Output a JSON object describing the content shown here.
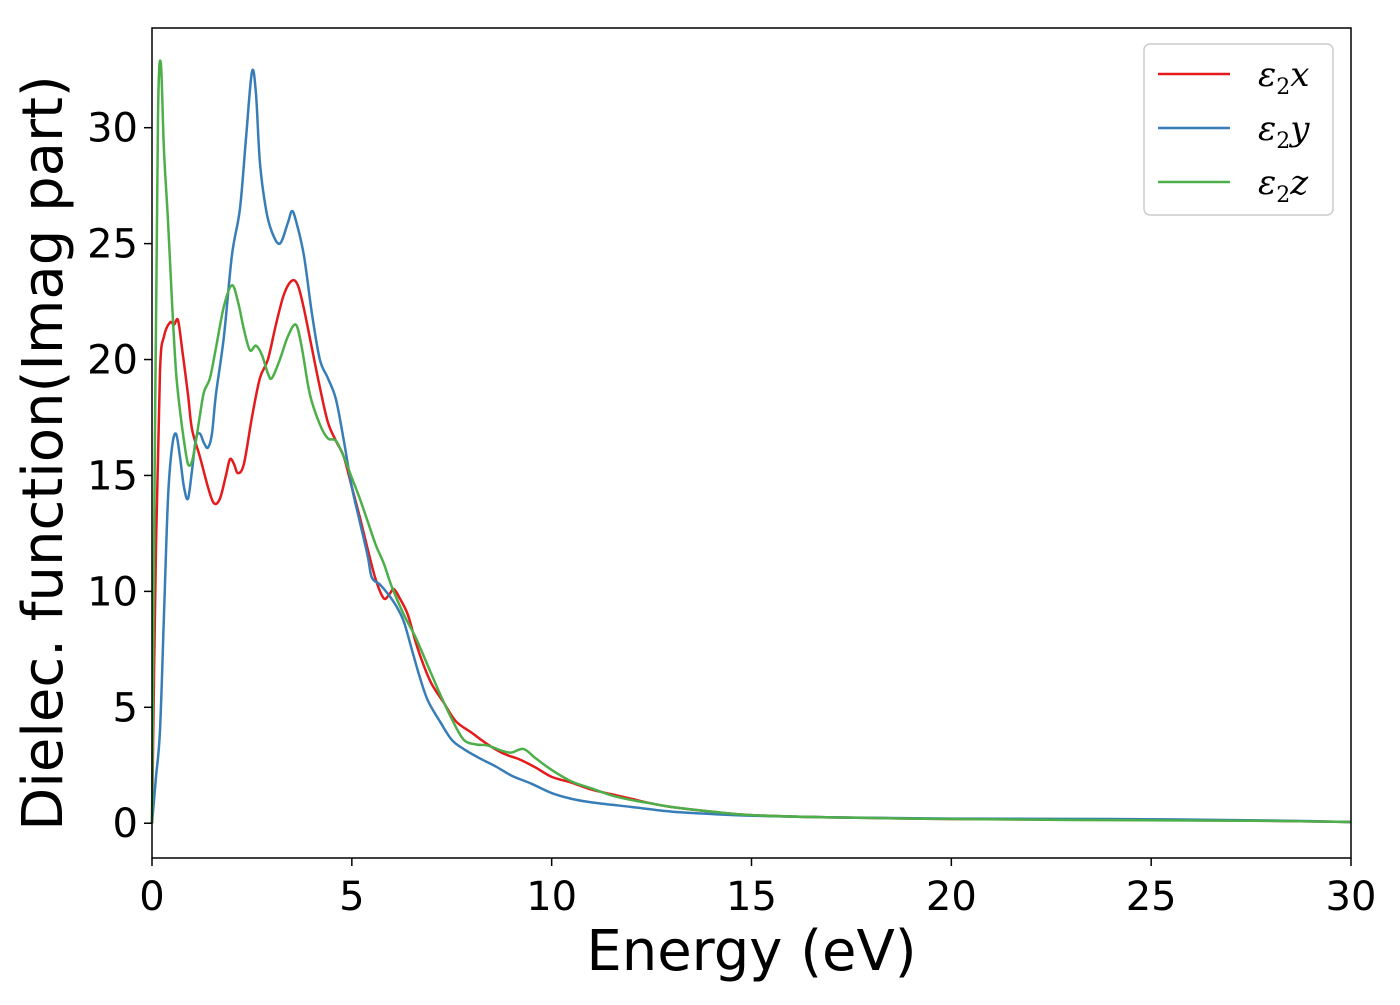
{
  "chart_data": {
    "type": "line",
    "xlabel": "Energy (eV)",
    "ylabel": "Dielec. function(Imag part)",
    "xlim": [
      0,
      30
    ],
    "ylim": [
      -1.5,
      34.3
    ],
    "xticks": [
      0,
      5,
      10,
      15,
      20,
      25,
      30
    ],
    "yticks": [
      0,
      5,
      10,
      15,
      20,
      25,
      30
    ],
    "grid": false,
    "legend_position": "top-right",
    "series": [
      {
        "name": "ε₂x",
        "label_main": "ε",
        "label_sub": "2",
        "label_suffix": "x",
        "color": "#e41a1c",
        "points": [
          [
            0,
            0
          ],
          [
            0.1,
            12
          ],
          [
            0.2,
            19.5
          ],
          [
            0.3,
            21
          ],
          [
            0.45,
            21.6
          ],
          [
            0.55,
            21.5
          ],
          [
            0.65,
            21.7
          ],
          [
            0.75,
            20.5
          ],
          [
            0.9,
            18.5
          ],
          [
            1.0,
            17
          ],
          [
            1.2,
            15.8
          ],
          [
            1.4,
            14.5
          ],
          [
            1.55,
            13.8
          ],
          [
            1.7,
            14
          ],
          [
            1.85,
            15
          ],
          [
            1.95,
            15.7
          ],
          [
            2.05,
            15.5
          ],
          [
            2.15,
            15.1
          ],
          [
            2.3,
            15.5
          ],
          [
            2.5,
            17.5
          ],
          [
            2.7,
            19.2
          ],
          [
            2.9,
            20
          ],
          [
            3.1,
            21.5
          ],
          [
            3.3,
            22.8
          ],
          [
            3.5,
            23.4
          ],
          [
            3.65,
            23.2
          ],
          [
            3.8,
            22.2
          ],
          [
            4.0,
            20.5
          ],
          [
            4.2,
            18.8
          ],
          [
            4.4,
            17.3
          ],
          [
            4.6,
            16.5
          ],
          [
            4.8,
            15.8
          ],
          [
            5.0,
            14.5
          ],
          [
            5.2,
            13.2
          ],
          [
            5.4,
            11.8
          ],
          [
            5.6,
            10.5
          ],
          [
            5.8,
            9.7
          ],
          [
            5.95,
            9.9
          ],
          [
            6.05,
            10.1
          ],
          [
            6.2,
            9.7
          ],
          [
            6.4,
            9.0
          ],
          [
            6.6,
            7.8
          ],
          [
            6.8,
            6.8
          ],
          [
            7.0,
            6.0
          ],
          [
            7.3,
            5.2
          ],
          [
            7.6,
            4.4
          ],
          [
            8.0,
            3.9
          ],
          [
            8.4,
            3.4
          ],
          [
            8.8,
            3.0
          ],
          [
            9.2,
            2.75
          ],
          [
            9.6,
            2.4
          ],
          [
            10.0,
            2.0
          ],
          [
            10.5,
            1.75
          ],
          [
            11.0,
            1.45
          ],
          [
            11.5,
            1.25
          ],
          [
            12.0,
            1.05
          ],
          [
            12.5,
            0.85
          ],
          [
            13.0,
            0.7
          ],
          [
            14.0,
            0.5
          ],
          [
            15.0,
            0.35
          ],
          [
            17.0,
            0.25
          ],
          [
            20.0,
            0.18
          ],
          [
            23.0,
            0.15
          ],
          [
            26.0,
            0.13
          ],
          [
            28.0,
            0.1
          ],
          [
            30.0,
            0.05
          ]
        ]
      },
      {
        "name": "ε₂y",
        "label_main": "ε",
        "label_sub": "2",
        "label_suffix": "y",
        "color": "#377eb8",
        "points": [
          [
            0,
            0
          ],
          [
            0.1,
            2
          ],
          [
            0.2,
            4
          ],
          [
            0.3,
            9
          ],
          [
            0.4,
            14
          ],
          [
            0.5,
            16.2
          ],
          [
            0.6,
            16.8
          ],
          [
            0.7,
            15.8
          ],
          [
            0.8,
            14.5
          ],
          [
            0.9,
            14.0
          ],
          [
            1.0,
            15.2
          ],
          [
            1.1,
            16.6
          ],
          [
            1.2,
            16.8
          ],
          [
            1.3,
            16.4
          ],
          [
            1.4,
            16.2
          ],
          [
            1.5,
            16.8
          ],
          [
            1.6,
            18.5
          ],
          [
            1.8,
            21
          ],
          [
            2.0,
            24.5
          ],
          [
            2.2,
            26.5
          ],
          [
            2.35,
            29.5
          ],
          [
            2.5,
            32.4
          ],
          [
            2.6,
            31.5
          ],
          [
            2.7,
            28.5
          ],
          [
            2.85,
            26.5
          ],
          [
            3.0,
            25.5
          ],
          [
            3.2,
            25.0
          ],
          [
            3.4,
            25.9
          ],
          [
            3.5,
            26.4
          ],
          [
            3.6,
            26.0
          ],
          [
            3.8,
            24.5
          ],
          [
            4.0,
            22
          ],
          [
            4.2,
            20
          ],
          [
            4.4,
            19.2
          ],
          [
            4.6,
            18.3
          ],
          [
            4.8,
            16.5
          ],
          [
            5.0,
            14.5
          ],
          [
            5.2,
            13
          ],
          [
            5.4,
            11.5
          ],
          [
            5.5,
            10.6
          ],
          [
            5.7,
            10.3
          ],
          [
            5.9,
            9.9
          ],
          [
            6.1,
            9.4
          ],
          [
            6.3,
            8.7
          ],
          [
            6.5,
            7.5
          ],
          [
            6.7,
            6.3
          ],
          [
            6.9,
            5.3
          ],
          [
            7.2,
            4.4
          ],
          [
            7.5,
            3.6
          ],
          [
            7.8,
            3.2
          ],
          [
            8.2,
            2.8
          ],
          [
            8.6,
            2.45
          ],
          [
            9.0,
            2.05
          ],
          [
            9.5,
            1.7
          ],
          [
            10.0,
            1.3
          ],
          [
            10.5,
            1.05
          ],
          [
            11.0,
            0.9
          ],
          [
            12.0,
            0.7
          ],
          [
            13.0,
            0.5
          ],
          [
            14.0,
            0.4
          ],
          [
            15.0,
            0.32
          ],
          [
            17.0,
            0.25
          ],
          [
            20.0,
            0.2
          ],
          [
            24.0,
            0.18
          ],
          [
            28.0,
            0.12
          ],
          [
            30.0,
            0.05
          ]
        ]
      },
      {
        "name": "ε₂z",
        "label_main": "ε",
        "label_sub": "2",
        "label_suffix": "z",
        "color": "#4daf4a",
        "points": [
          [
            0,
            0
          ],
          [
            0.08,
            18
          ],
          [
            0.15,
            30.5
          ],
          [
            0.22,
            32.8
          ],
          [
            0.3,
            29
          ],
          [
            0.4,
            26
          ],
          [
            0.5,
            22.5
          ],
          [
            0.6,
            19.5
          ],
          [
            0.7,
            17.8
          ],
          [
            0.8,
            16.5
          ],
          [
            0.9,
            15.5
          ],
          [
            1.0,
            15.6
          ],
          [
            1.1,
            16.5
          ],
          [
            1.2,
            17.6
          ],
          [
            1.3,
            18.6
          ],
          [
            1.45,
            19.2
          ],
          [
            1.6,
            20.5
          ],
          [
            1.8,
            22.3
          ],
          [
            2.0,
            23.2
          ],
          [
            2.15,
            22.5
          ],
          [
            2.3,
            21.3
          ],
          [
            2.45,
            20.4
          ],
          [
            2.6,
            20.6
          ],
          [
            2.75,
            20.2
          ],
          [
            2.9,
            19.4
          ],
          [
            3.0,
            19.2
          ],
          [
            3.2,
            20.0
          ],
          [
            3.4,
            21.0
          ],
          [
            3.6,
            21.5
          ],
          [
            3.75,
            20.5
          ],
          [
            3.95,
            18.5
          ],
          [
            4.2,
            17.2
          ],
          [
            4.4,
            16.6
          ],
          [
            4.6,
            16.5
          ],
          [
            4.8,
            15.8
          ],
          [
            5.0,
            14.9
          ],
          [
            5.2,
            14.0
          ],
          [
            5.4,
            13
          ],
          [
            5.6,
            12
          ],
          [
            5.8,
            11.2
          ],
          [
            6.0,
            10.2
          ],
          [
            6.3,
            9.0
          ],
          [
            6.6,
            8.0
          ],
          [
            6.9,
            6.8
          ],
          [
            7.2,
            5.6
          ],
          [
            7.5,
            4.5
          ],
          [
            7.8,
            3.6
          ],
          [
            8.1,
            3.4
          ],
          [
            8.4,
            3.35
          ],
          [
            8.8,
            3.1
          ],
          [
            9.0,
            3.05
          ],
          [
            9.3,
            3.2
          ],
          [
            9.6,
            2.8
          ],
          [
            10.0,
            2.3
          ],
          [
            10.5,
            1.8
          ],
          [
            11.0,
            1.5
          ],
          [
            11.5,
            1.2
          ],
          [
            12.0,
            1.0
          ],
          [
            12.5,
            0.85
          ],
          [
            13.0,
            0.7
          ],
          [
            14.0,
            0.5
          ],
          [
            15.0,
            0.35
          ],
          [
            17.0,
            0.25
          ],
          [
            20.0,
            0.18
          ],
          [
            23.0,
            0.14
          ],
          [
            26.0,
            0.12
          ],
          [
            28.0,
            0.1
          ],
          [
            30.0,
            0.05
          ]
        ]
      }
    ]
  }
}
